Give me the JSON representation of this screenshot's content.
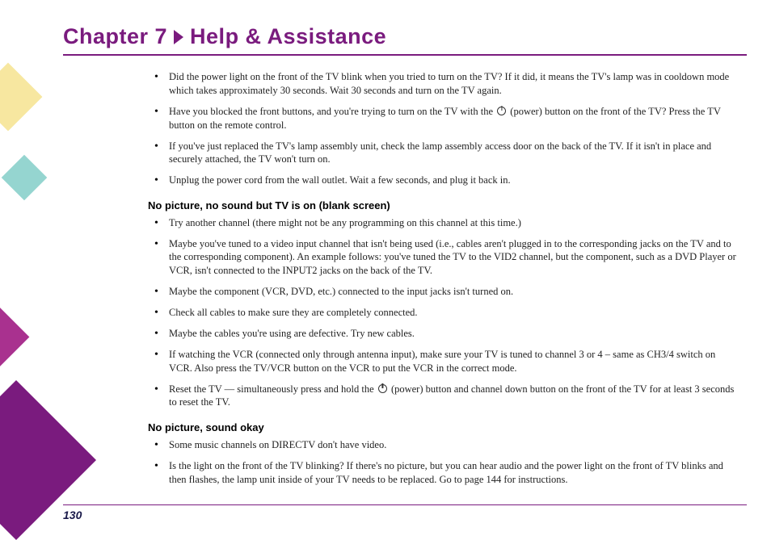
{
  "chapter": {
    "prefix": "Chapter 7",
    "title": "Help & Assistance"
  },
  "colors": {
    "accent": "#7a1b7e",
    "deco_yellow": "#f7e7a0",
    "deco_magenta": "#a9318f",
    "deco_magenta_dark": "#7a1b7e",
    "deco_teal": "#4fb9b0",
    "text": "#222222",
    "page_bg": "#ffffff"
  },
  "icons": {
    "power_label": "(power)"
  },
  "section0": {
    "items": [
      "Did the power light on the front of the TV blink when you tried to turn on the TV? If it did, it means the TV's lamp was in cooldown mode which takes approximately 30 seconds. Wait 30 seconds and turn on the TV again.",
      "Have you blocked the front buttons, and you're trying to turn on the TV with the {{POWER}} (power) button on the front of the TV? Press the TV button on the remote control.",
      "If you've just replaced the TV's lamp assembly unit, check the lamp assembly access door on the back of the TV. If it isn't in place and securely attached, the TV won't turn on.",
      "Unplug the power cord from the wall outlet. Wait a few seconds, and plug it back in."
    ]
  },
  "section1": {
    "heading": "No picture, no sound but TV is on (blank screen)",
    "items": [
      "Try another channel (there might not be any programming on this channel at this time.)",
      "Maybe you've tuned to a video input channel that isn't being used (i.e., cables aren't plugged in to the corresponding jacks on the TV and to the corresponding component). An example follows: you've tuned the TV to the VID2 channel, but the component, such as a DVD Player or VCR, isn't connected to the INPUT2 jacks on the back of the TV.",
      "Maybe the component (VCR, DVD, etc.) connected to the input jacks isn't turned on.",
      "Check all cables to make sure they are completely connected.",
      "Maybe the cables you're using are defective. Try new cables.",
      "If watching the VCR (connected only through antenna input), make sure your TV is tuned to channel 3 or 4 – same as CH3/4 switch on VCR.  Also press the TV/VCR button on the VCR to put the VCR in the correct mode.",
      "Reset the TV — simultaneously press and hold the {{POWER}} (power) button and channel down button on the front of the TV for at least 3 seconds to reset the TV."
    ]
  },
  "section2": {
    "heading": "No picture, sound okay",
    "items": [
      "Some music channels on DIRECTV don't have video.",
      "Is the light on the front of the TV blinking? If there's no picture, but you can hear audio and the power light on the front of TV blinks and then flashes, the lamp unit inside of your TV needs to be replaced. Go to page 144 for instructions."
    ]
  },
  "page_number": "130"
}
